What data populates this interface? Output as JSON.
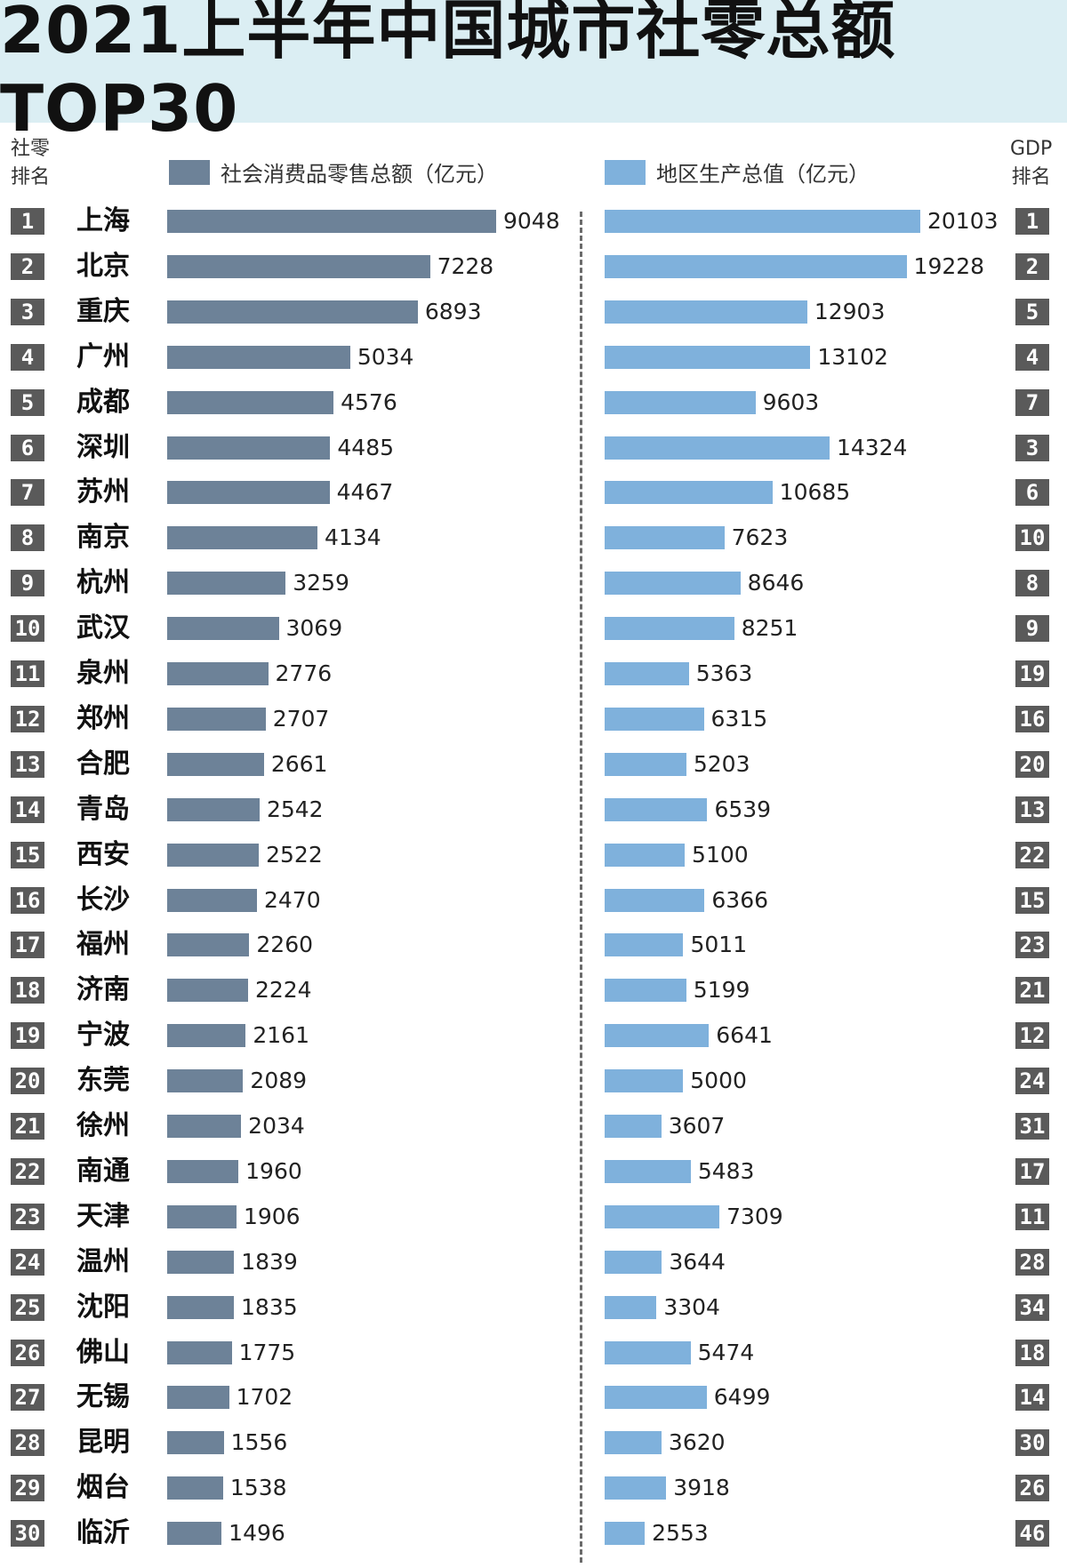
{
  "title": "2021上半年中国城市社零总额TOP30",
  "header": {
    "left_rank_line1": "社零",
    "left_rank_line2": "排名",
    "right_rank_line1": "GDP",
    "right_rank_line2": "排名",
    "legend_retail": "社会消费品零售总额（亿元）",
    "legend_gdp": "地区生产总值（亿元）"
  },
  "colors": {
    "retail_bar": "#6d8298",
    "gdp_bar": "#7fb1dc",
    "rank_badge": "#5a5a5a",
    "title_bg": "#dbeef3"
  },
  "chart_data": [
    {
      "type": "bar",
      "orientation": "horizontal",
      "title": "社会消费品零售总额（亿元）",
      "categories": [
        "上海",
        "北京",
        "重庆",
        "广州",
        "成都",
        "深圳",
        "苏州",
        "南京",
        "杭州",
        "武汉",
        "泉州",
        "郑州",
        "合肥",
        "青岛",
        "西安",
        "长沙",
        "福州",
        "济南",
        "宁波",
        "东莞",
        "徐州",
        "南通",
        "天津",
        "温州",
        "沈阳",
        "佛山",
        "无锡",
        "昆明",
        "烟台",
        "临沂"
      ],
      "values": [
        9048,
        7228,
        6893,
        5034,
        4576,
        4485,
        4467,
        4134,
        3259,
        3069,
        2776,
        2707,
        2661,
        2542,
        2522,
        2470,
        2260,
        2224,
        2161,
        2089,
        2034,
        1960,
        1906,
        1839,
        1835,
        1775,
        1702,
        1556,
        1538,
        1496
      ],
      "ranks": [
        1,
        2,
        3,
        4,
        5,
        6,
        7,
        8,
        9,
        10,
        11,
        12,
        13,
        14,
        15,
        16,
        17,
        18,
        19,
        20,
        21,
        22,
        23,
        24,
        25,
        26,
        27,
        28,
        29,
        30
      ],
      "xlim": [
        0,
        9048
      ]
    },
    {
      "type": "bar",
      "orientation": "horizontal",
      "title": "地区生产总值（亿元）",
      "categories": [
        "上海",
        "北京",
        "重庆",
        "广州",
        "成都",
        "深圳",
        "苏州",
        "南京",
        "杭州",
        "武汉",
        "泉州",
        "郑州",
        "合肥",
        "青岛",
        "西安",
        "长沙",
        "福州",
        "济南",
        "宁波",
        "东莞",
        "徐州",
        "南通",
        "天津",
        "温州",
        "沈阳",
        "佛山",
        "无锡",
        "昆明",
        "烟台",
        "临沂"
      ],
      "values": [
        20103,
        19228,
        12903,
        13102,
        9603,
        14324,
        10685,
        7623,
        8646,
        8251,
        5363,
        6315,
        5203,
        6539,
        5100,
        6366,
        5011,
        5199,
        6641,
        5000,
        3607,
        5483,
        7309,
        3644,
        3304,
        5474,
        6499,
        3620,
        3918,
        2553
      ],
      "ranks": [
        1,
        2,
        5,
        4,
        7,
        3,
        6,
        10,
        8,
        9,
        19,
        16,
        20,
        13,
        22,
        15,
        23,
        21,
        12,
        24,
        31,
        17,
        11,
        28,
        34,
        18,
        14,
        30,
        26,
        46
      ],
      "xlim": [
        0,
        20103
      ]
    }
  ]
}
